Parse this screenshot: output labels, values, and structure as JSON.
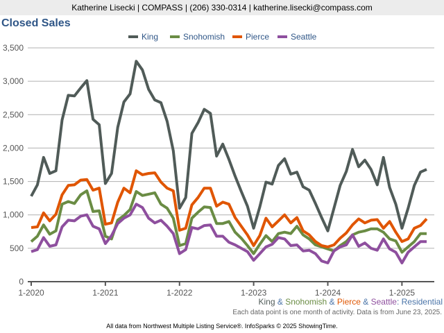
{
  "header": "Katherine Lisecki | COMPASS | (206) 330-0314 | katherine.lisecki@compass.com",
  "subtitle": {
    "king": "King",
    "amp1": " & ",
    "snohomish": "Snohomish",
    "amp2": " & ",
    "pierce": "Pierce",
    "amp3": " & ",
    "seattle": "Seattle",
    "suffix": ": Residential"
  },
  "note": "Each data point is one month of activity. Data is from June 23, 2025.",
  "footer": "All data from Northwest Multiple Listing Service®. InfoSparks © 2025 ShowingTime.",
  "chart_data": {
    "type": "line",
    "title": "Closed Sales",
    "xlabel": "",
    "ylabel": "",
    "ylim": [
      0,
      3500
    ],
    "yticks": [
      "0",
      "500",
      "1,000",
      "1,500",
      "2,000",
      "2,500",
      "3,000",
      "3,500"
    ],
    "xticks": [
      "1-2020",
      "1-2021",
      "1-2022",
      "1-2023",
      "1-2024",
      "1-2025"
    ],
    "x_start": "1-2020",
    "x_end": "5-2025",
    "grid": true,
    "legend_position": "top",
    "series": [
      {
        "name": "King",
        "color": "#505b58",
        "values": [
          1280,
          1450,
          1860,
          1620,
          1660,
          2420,
          2790,
          2780,
          2900,
          3010,
          2430,
          2350,
          1470,
          1620,
          2310,
          2690,
          2810,
          3300,
          3170,
          2880,
          2720,
          2680,
          2400,
          1960,
          1100,
          1260,
          2220,
          2380,
          2580,
          2520,
          1880,
          2060,
          1830,
          1580,
          1350,
          1130,
          800,
          1120,
          1490,
          1460,
          1740,
          1840,
          1610,
          1640,
          1420,
          1370,
          1170,
          960,
          760,
          1100,
          1440,
          1650,
          1980,
          1720,
          1820,
          1680,
          1450,
          1860,
          1410,
          1160,
          800,
          1100,
          1440,
          1640,
          1680
        ]
      },
      {
        "name": "Snohomish",
        "color": "#6a8c44",
        "values": [
          600,
          680,
          850,
          710,
          760,
          1160,
          1200,
          1170,
          1300,
          1360,
          1050,
          1060,
          680,
          640,
          920,
          990,
          1080,
          1350,
          1290,
          1310,
          1330,
          1160,
          1100,
          950,
          540,
          570,
          950,
          1040,
          1120,
          1110,
          870,
          870,
          900,
          740,
          650,
          540,
          420,
          560,
          690,
          600,
          720,
          740,
          720,
          830,
          700,
          640,
          550,
          520,
          490,
          460,
          540,
          600,
          700,
          740,
          760,
          790,
          790,
          740,
          640,
          610,
          440,
          520,
          600,
          720,
          720
        ]
      },
      {
        "name": "Pierce",
        "color": "#e05500",
        "values": [
          810,
          820,
          1030,
          910,
          1010,
          1300,
          1440,
          1450,
          1520,
          1530,
          1370,
          1400,
          860,
          880,
          1190,
          1400,
          1330,
          1660,
          1600,
          1620,
          1630,
          1490,
          1400,
          1360,
          770,
          800,
          1150,
          1260,
          1400,
          1400,
          1130,
          1190,
          1160,
          960,
          830,
          700,
          540,
          690,
          950,
          820,
          910,
          1000,
          880,
          960,
          760,
          700,
          600,
          540,
          520,
          550,
          650,
          730,
          850,
          940,
          880,
          920,
          930,
          800,
          900,
          740,
          600,
          640,
          800,
          840,
          940
        ]
      },
      {
        "name": "Seattle",
        "color": "#8e4f9e",
        "values": [
          450,
          480,
          660,
          530,
          550,
          820,
          920,
          910,
          980,
          1000,
          830,
          790,
          570,
          690,
          870,
          950,
          1000,
          1160,
          1110,
          950,
          880,
          920,
          830,
          720,
          420,
          480,
          810,
          790,
          840,
          850,
          680,
          680,
          590,
          550,
          500,
          450,
          320,
          420,
          520,
          560,
          660,
          640,
          540,
          550,
          460,
          470,
          420,
          310,
          280,
          460,
          520,
          550,
          700,
          530,
          580,
          500,
          470,
          640,
          490,
          440,
          280,
          440,
          520,
          600,
          600
        ]
      }
    ]
  }
}
